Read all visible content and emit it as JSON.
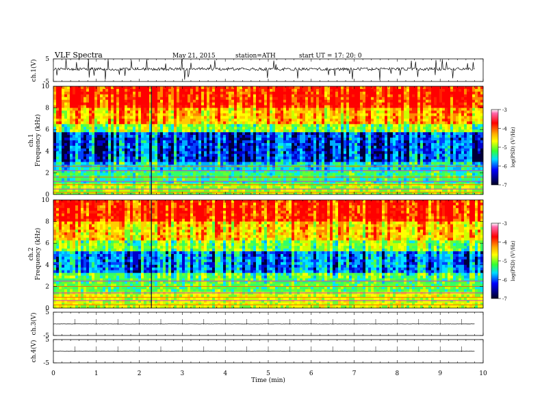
{
  "header": {
    "title": "VLF Spectra",
    "date": "May 21, 2015",
    "station": "station=ATH",
    "start": "start  UT =   17: 20: 0"
  },
  "chart_data": [
    {
      "type": "line",
      "panel": "ch1-waveform",
      "ylabel": "ch.1(V)",
      "ylim": [
        -5,
        5
      ],
      "yticks": [
        "5",
        "-5"
      ],
      "xlim": [
        0,
        10
      ],
      "description_values": "noisy waveform around ~0.5 V with frequent spikes",
      "baseline": 0.5
    },
    {
      "type": "heatmap",
      "panel": "ch1-spectrogram",
      "ylabel": "ch.1 Frequency (kHz)",
      "ylim": [
        0,
        10
      ],
      "yticks": [
        "0",
        "2",
        "4",
        "6",
        "8",
        "10"
      ],
      "xlim": [
        0,
        10
      ],
      "colorbar": {
        "label": "log(PSD) (V²/Hz)",
        "range": [
          -7,
          -3
        ],
        "ticks": [
          "-3",
          "-4",
          "-5",
          "-6",
          "-7"
        ]
      }
    },
    {
      "type": "heatmap",
      "panel": "ch2-spectrogram",
      "ylabel": "ch.2 Frequency (kHz)",
      "ylim": [
        0,
        10
      ],
      "yticks": [
        "0",
        "2",
        "4",
        "6",
        "8",
        "10"
      ],
      "xlim": [
        0,
        10
      ],
      "colorbar": {
        "label": "log(PSD) (V²/Hz)",
        "range": [
          -7,
          -3
        ],
        "ticks": [
          "-3",
          "-4",
          "-5",
          "-6",
          "-7"
        ]
      }
    },
    {
      "type": "line",
      "panel": "ch3-waveform",
      "ylabel": "ch.3(V)",
      "ylim": [
        -5,
        5
      ],
      "yticks": [
        "5",
        "-5"
      ],
      "xlim": [
        0,
        10
      ],
      "baseline": 0
    },
    {
      "type": "line",
      "panel": "ch4-waveform",
      "ylabel": "ch.4(V)",
      "ylim": [
        -5,
        5
      ],
      "yticks": [
        "5",
        "-5"
      ],
      "xlim": [
        0,
        10
      ],
      "baseline": 0
    }
  ],
  "xaxis": {
    "label": "Time  (min)",
    "ticks": [
      "0",
      "1",
      "2",
      "3",
      "4",
      "5",
      "6",
      "7",
      "8",
      "9",
      "10"
    ]
  },
  "colors": {
    "low": "#000066",
    "blue": "#0000ff",
    "cyan": "#00ccff",
    "green": "#33ff33",
    "yellow": "#ffff00",
    "orange": "#ff9900",
    "red": "#ff0000"
  }
}
